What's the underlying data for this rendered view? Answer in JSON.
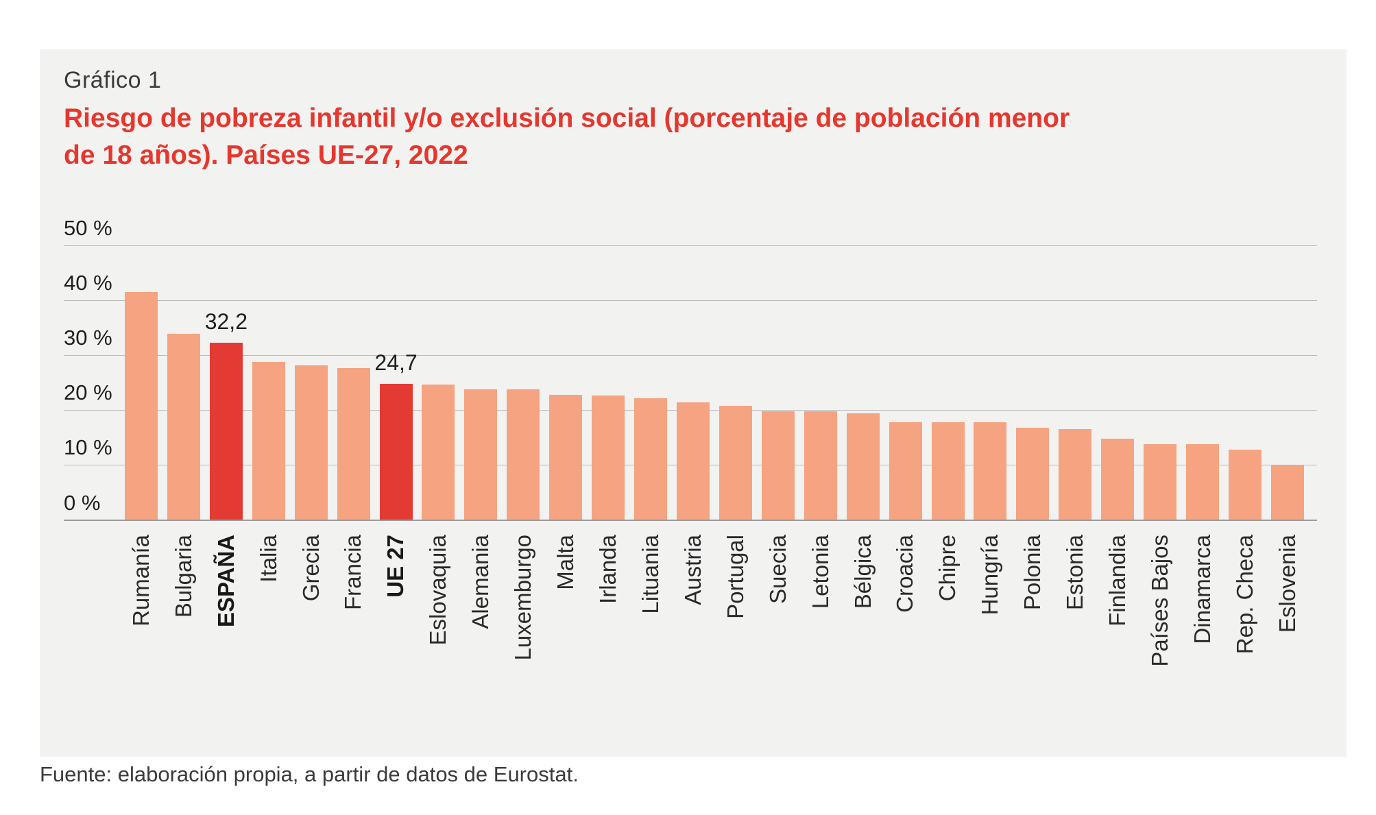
{
  "header": {
    "kicker": "Gráfico 1",
    "title_line1": "Riesgo de pobreza infantil y/o exclusión social (porcentaje de población menor",
    "title_line2": "de 18 años). Países UE-27, 2022"
  },
  "footer": {
    "source": "Fuente: elaboración propia, a partir de datos de Eurostat."
  },
  "colors": {
    "page_background": "#ffffff",
    "panel_background": "#f2f2f1",
    "bar": "#f5a380",
    "bar_highlight": "#e43a34",
    "title_red": "#e5372e",
    "gridline": "#b9b9b9",
    "axis_line": "#9c9c9c",
    "text_dark": "#1f1f1f",
    "text_gray": "#3b3b3b"
  },
  "chart_data": {
    "type": "bar",
    "title": "Riesgo de pobreza infantil y/o exclusión social (porcentaje de población menor de 18 años). Países UE-27, 2022",
    "xlabel": "",
    "ylabel": "",
    "ylim": [
      0,
      50
    ],
    "yticks": [
      0,
      10,
      20,
      30,
      40,
      50
    ],
    "ytick_labels": [
      "0 %",
      "10 %",
      "20 %",
      "30 %",
      "40 %",
      "50 %"
    ],
    "grid": "horizontal",
    "legend": "none",
    "categories": [
      "Rumanía",
      "Bulgaria",
      "ESPAÑA",
      "Italia",
      "Grecia",
      "Francia",
      "UE 27",
      "Eslovaquia",
      "Alemania",
      "Luxemburgo",
      "Malta",
      "Irlanda",
      "Lituania",
      "Austria",
      "Portugal",
      "Suecia",
      "Letonia",
      "Bélgica",
      "Croacia",
      "Chipre",
      "Hungría",
      "Polonia",
      "Estonia",
      "Finlandia",
      "Países Bajos",
      "Dinamarca",
      "Rep. Checa",
      "Eslovenia"
    ],
    "values": [
      41.5,
      33.9,
      32.2,
      28.8,
      28.1,
      27.6,
      24.7,
      24.6,
      23.8,
      23.8,
      22.7,
      22.6,
      22.1,
      21.4,
      20.8,
      19.8,
      19.7,
      19.4,
      17.8,
      17.8,
      17.7,
      16.8,
      16.5,
      14.7,
      13.7,
      13.7,
      12.8,
      9.9
    ],
    "highlighted_categories": [
      "ESPAÑA",
      "UE 27"
    ],
    "bold_x_labels": [
      "ESPAÑA",
      "UE 27"
    ],
    "value_annotations": [
      {
        "category": "ESPAÑA",
        "text": "32,2"
      },
      {
        "category": "UE 27",
        "text": "24,7"
      }
    ]
  }
}
